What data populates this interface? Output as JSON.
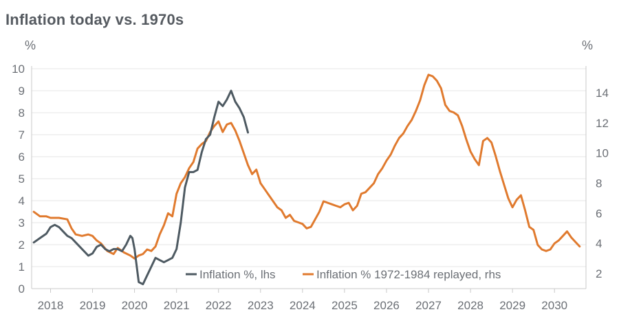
{
  "chart_data": {
    "type": "line",
    "title": "Inflation today vs. 1970s",
    "y_unit_left": "%",
    "y_unit_right": "%",
    "ylim_left": [
      0,
      10
    ],
    "ylim_right": [
      1,
      15.6
    ],
    "yticks_left": [
      0,
      1,
      2,
      3,
      4,
      5,
      6,
      7,
      8,
      9,
      10
    ],
    "yticks_right": [
      2,
      4,
      6,
      8,
      10,
      12,
      14
    ],
    "xlim": [
      2017.55,
      2030.75
    ],
    "xticks": [
      2018,
      2019,
      2020,
      2021,
      2022,
      2023,
      2024,
      2025,
      2026,
      2027,
      2028,
      2029,
      2030
    ],
    "grid": true,
    "legend_position": "bottom-center",
    "series": [
      {
        "name": "Inflation %, lhs",
        "axis": "left",
        "color": "#4e5a62",
        "x": [
          2017.6,
          2017.75,
          2017.9,
          2018.0,
          2018.1,
          2018.2,
          2018.3,
          2018.4,
          2018.5,
          2018.6,
          2018.75,
          2018.9,
          2019.0,
          2019.1,
          2019.2,
          2019.3,
          2019.4,
          2019.5,
          2019.6,
          2019.7,
          2019.8,
          2019.9,
          2019.95,
          2020.0,
          2020.1,
          2020.2,
          2020.3,
          2020.4,
          2020.5,
          2020.6,
          2020.7,
          2020.8,
          2020.9,
          2021.0,
          2021.1,
          2021.2,
          2021.3,
          2021.4,
          2021.5,
          2021.6,
          2021.7,
          2021.8,
          2021.9,
          2022.0,
          2022.1,
          2022.2,
          2022.3,
          2022.4,
          2022.5,
          2022.6,
          2022.7
        ],
        "y": [
          2.1,
          2.3,
          2.5,
          2.8,
          2.9,
          2.8,
          2.6,
          2.4,
          2.3,
          2.1,
          1.8,
          1.5,
          1.6,
          1.9,
          2.0,
          1.8,
          1.7,
          1.8,
          1.8,
          1.7,
          2.0,
          2.4,
          2.3,
          1.8,
          0.3,
          0.2,
          0.6,
          1.0,
          1.4,
          1.3,
          1.2,
          1.3,
          1.4,
          1.8,
          3.0,
          4.6,
          5.3,
          5.3,
          5.4,
          6.2,
          6.8,
          7.0,
          7.8,
          8.5,
          8.3,
          8.6,
          9.0,
          8.5,
          8.2,
          7.8,
          7.1
        ]
      },
      {
        "name": "Inflation % 1972-1984 replayed, rhs",
        "axis": "right",
        "color": "#e07a2e",
        "x": [
          2017.6,
          2017.75,
          2017.9,
          2018.0,
          2018.2,
          2018.4,
          2018.5,
          2018.6,
          2018.75,
          2018.9,
          2019.0,
          2019.1,
          2019.2,
          2019.35,
          2019.5,
          2019.6,
          2019.75,
          2019.9,
          2020.0,
          2020.1,
          2020.2,
          2020.3,
          2020.4,
          2020.5,
          2020.6,
          2020.7,
          2020.8,
          2020.9,
          2021.0,
          2021.1,
          2021.2,
          2021.3,
          2021.4,
          2021.5,
          2021.6,
          2021.7,
          2021.8,
          2021.9,
          2022.0,
          2022.1,
          2022.2,
          2022.3,
          2022.4,
          2022.5,
          2022.6,
          2022.7,
          2022.8,
          2022.9,
          2023.0,
          2023.1,
          2023.2,
          2023.3,
          2023.4,
          2023.5,
          2023.6,
          2023.7,
          2023.8,
          2023.9,
          2024.0,
          2024.1,
          2024.2,
          2024.3,
          2024.4,
          2024.5,
          2024.6,
          2024.7,
          2024.8,
          2024.9,
          2025.0,
          2025.1,
          2025.2,
          2025.3,
          2025.4,
          2025.5,
          2025.6,
          2025.7,
          2025.8,
          2025.9,
          2026.0,
          2026.1,
          2026.2,
          2026.3,
          2026.4,
          2026.5,
          2026.6,
          2026.7,
          2026.8,
          2026.9,
          2027.0,
          2027.1,
          2027.2,
          2027.3,
          2027.4,
          2027.5,
          2027.6,
          2027.7,
          2027.8,
          2027.9,
          2028.0,
          2028.1,
          2028.2,
          2028.3,
          2028.4,
          2028.5,
          2028.6,
          2028.7,
          2028.8,
          2028.9,
          2029.0,
          2029.1,
          2029.2,
          2029.3,
          2029.4,
          2029.5,
          2029.6,
          2029.7,
          2029.8,
          2029.9,
          2030.0,
          2030.1,
          2030.2,
          2030.3,
          2030.4,
          2030.5,
          2030.6
        ],
        "y": [
          6.1,
          5.8,
          5.8,
          5.7,
          5.7,
          5.6,
          5.0,
          4.6,
          4.5,
          4.6,
          4.5,
          4.2,
          4.0,
          3.5,
          3.3,
          3.7,
          3.4,
          3.2,
          3.0,
          3.2,
          3.3,
          3.6,
          3.5,
          3.8,
          4.6,
          5.2,
          6.0,
          5.8,
          7.3,
          8.0,
          8.4,
          9.0,
          9.4,
          10.3,
          10.6,
          10.8,
          11.4,
          11.8,
          12.1,
          11.4,
          11.9,
          12.0,
          11.5,
          10.8,
          10.0,
          9.2,
          8.6,
          8.9,
          8.0,
          7.6,
          7.2,
          6.8,
          6.4,
          6.2,
          5.7,
          5.9,
          5.5,
          5.4,
          5.3,
          5.0,
          5.1,
          5.6,
          6.1,
          6.8,
          6.7,
          6.6,
          6.5,
          6.4,
          6.6,
          6.7,
          6.2,
          6.5,
          7.3,
          7.4,
          7.7,
          8.0,
          8.6,
          9.0,
          9.5,
          9.9,
          10.5,
          11.0,
          11.3,
          11.8,
          12.2,
          12.8,
          13.5,
          14.5,
          15.2,
          15.1,
          14.8,
          14.3,
          13.2,
          12.8,
          12.7,
          12.5,
          11.8,
          10.9,
          10.1,
          9.6,
          9.2,
          10.8,
          11.0,
          10.7,
          9.8,
          8.8,
          7.9,
          7.0,
          6.4,
          6.9,
          7.2,
          6.2,
          5.1,
          4.9,
          3.9,
          3.6,
          3.5,
          3.6,
          4.0,
          4.2,
          4.5,
          4.8,
          4.4,
          4.1,
          3.8
        ]
      }
    ]
  }
}
